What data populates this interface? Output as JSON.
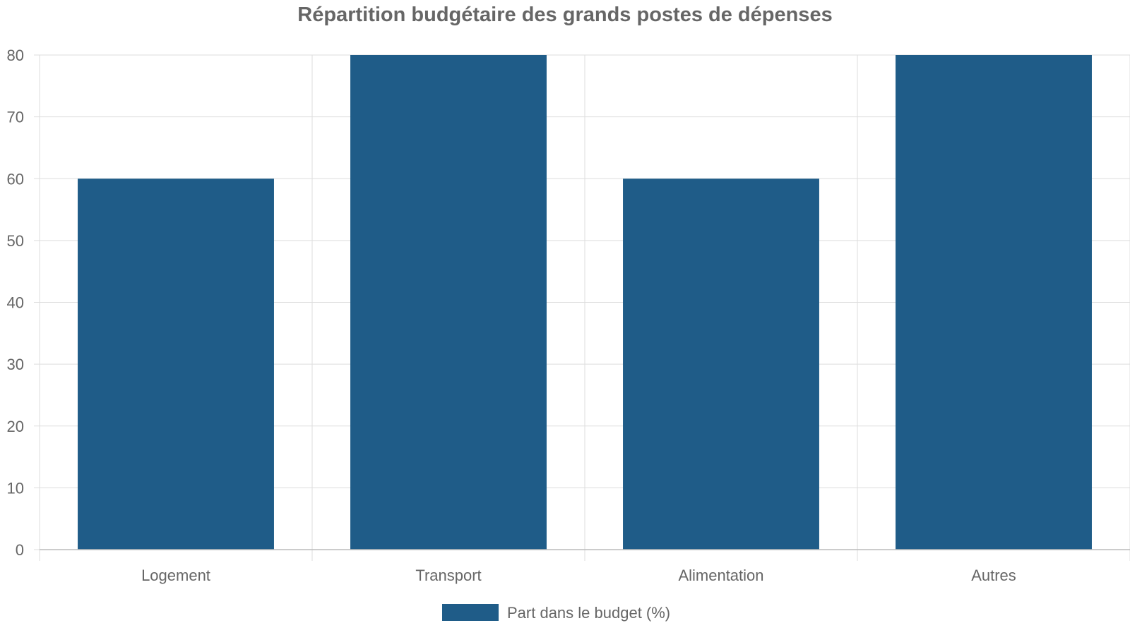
{
  "chart_data": {
    "type": "bar",
    "title": "Répartition budgétaire des grands postes de dépenses",
    "xlabel": "",
    "ylabel": "",
    "categories": [
      "Logement",
      "Transport",
      "Alimentation",
      "Autres"
    ],
    "series": [
      {
        "name": "Part dans le budget (%)",
        "values": [
          60,
          80,
          60,
          80
        ],
        "color": "#1f5c88"
      }
    ],
    "ylim": [
      0,
      80
    ],
    "yticks": [
      "0",
      "10",
      "20",
      "30",
      "40",
      "50",
      "60",
      "70",
      "80"
    ],
    "grid": true,
    "legend_position": "bottom-center",
    "colors": {
      "grid": "#dddddd",
      "axis": "#bbbbbb",
      "text": "#666666"
    }
  }
}
